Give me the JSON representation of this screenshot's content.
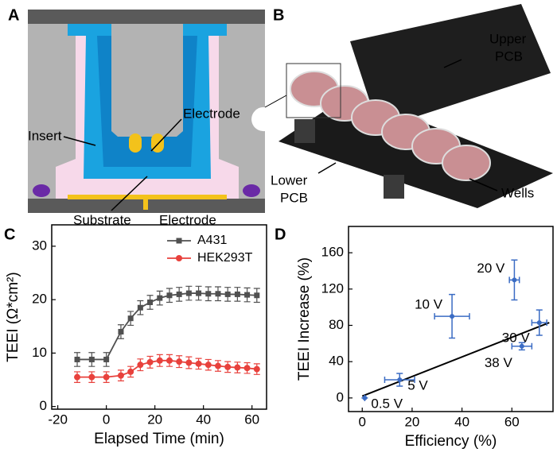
{
  "panels": {
    "a": {
      "letter": "A",
      "electrode_top": "Electrode",
      "insert": "Insert",
      "substrate": "Substrate",
      "electrode_bottom": "Electrode"
    },
    "b": {
      "letter": "B",
      "upper_pcb": [
        "Upper",
        "PCB"
      ],
      "lower_pcb": [
        "Lower",
        "PCB"
      ],
      "wells": "Wells"
    },
    "c": {
      "letter": "C"
    },
    "d": {
      "letter": "D"
    }
  },
  "chart_data": [
    {
      "type": "line",
      "x_label": "Elapsed Time (min)",
      "y_label": "TEEI (Ω*cm²)",
      "x": [
        -12,
        -6,
        0,
        6,
        10,
        14,
        18,
        22,
        26,
        30,
        34,
        38,
        42,
        46,
        50,
        54,
        58,
        62
      ],
      "series": [
        {
          "name": "A431",
          "color": "#505050",
          "marker": "square",
          "values": [
            8.8,
            8.8,
            8.8,
            14,
            16.5,
            18.5,
            19.5,
            20.3,
            20.8,
            21,
            21.2,
            21.2,
            21.1,
            21.1,
            21,
            21,
            20.9,
            20.8
          ],
          "errors": [
            1.3,
            1.3,
            1.3,
            1.3,
            1.3,
            1.3,
            1.3,
            1.3,
            1.3,
            1.3,
            1.3,
            1.3,
            1.3,
            1.3,
            1.3,
            1.3,
            1.3,
            1.3
          ]
        },
        {
          "name": "HEK293T",
          "color": "#e8413c",
          "marker": "circle",
          "values": [
            5.5,
            5.5,
            5.5,
            5.8,
            6.5,
            7.8,
            8.3,
            8.6,
            8.6,
            8.4,
            8.2,
            8,
            7.8,
            7.6,
            7.4,
            7.3,
            7.2,
            7
          ],
          "errors": [
            1,
            1,
            1,
            1,
            1,
            1.1,
            1.1,
            1.1,
            1.1,
            1.1,
            1.1,
            1,
            1,
            1,
            1,
            1,
            1,
            1
          ]
        }
      ],
      "xlim": [
        -22.5,
        66
      ],
      "ylim": [
        -0.5,
        34
      ],
      "xticks": [
        -20,
        0,
        20,
        40,
        60
      ],
      "yticks": [
        0,
        10,
        20,
        30
      ],
      "legend": "top-right"
    },
    {
      "type": "scatter",
      "x_label": "Efficiency (%)",
      "y_label": "TEEI Increase (%)",
      "color": "#3b6cc4",
      "point_labels": [
        "0.5 V",
        "5 V",
        "10 V",
        "20 V",
        "30 V",
        "38 V"
      ],
      "x": [
        1,
        15,
        36,
        61,
        71,
        64
      ],
      "xerr": [
        0,
        6,
        7,
        2,
        3,
        4
      ],
      "values": [
        0,
        20,
        90,
        130,
        83,
        57
      ],
      "errors": [
        0,
        7,
        24,
        22,
        14,
        4
      ],
      "trend_line": {
        "x": [
          0,
          75
        ],
        "values": [
          2,
          83
        ],
        "color": "#000000"
      },
      "xlim": [
        -5.5,
        76.5
      ],
      "ylim": [
        -15,
        189
      ],
      "xticks": [
        0,
        20,
        40,
        60
      ],
      "yticks": [
        0,
        40,
        80,
        120,
        160
      ]
    }
  ]
}
